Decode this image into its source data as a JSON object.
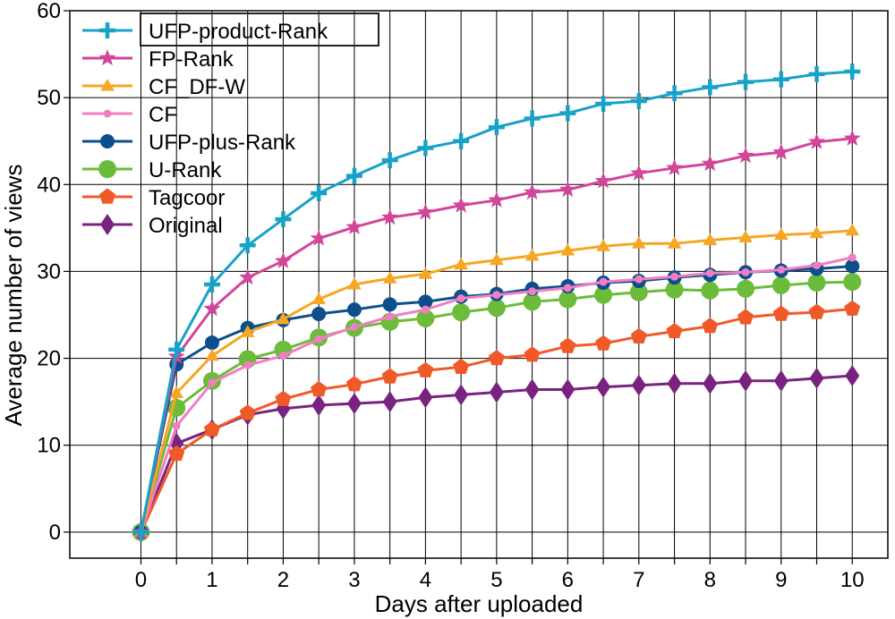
{
  "chart_data": {
    "type": "line",
    "xlabel": "Days after uploaded",
    "ylabel": "Average number of views",
    "xlim": [
      -1,
      10.5
    ],
    "ylim": [
      -3,
      60
    ],
    "xticks": [
      0,
      1,
      2,
      3,
      4,
      5,
      6,
      7,
      8,
      9,
      10
    ],
    "yticks": [
      0,
      10,
      20,
      30,
      40,
      50,
      60
    ],
    "grid": true,
    "legend_position": "top-left",
    "x": [
      0,
      0.5,
      1,
      1.5,
      2,
      2.5,
      3,
      3.5,
      4,
      4.5,
      5,
      5.5,
      6,
      6.5,
      7,
      7.5,
      8,
      8.5,
      9,
      9.5,
      10
    ],
    "series": [
      {
        "name": "UFP-product-Rank",
        "color": "#17a2c8",
        "marker": "plus",
        "values": [
          0,
          21,
          28.5,
          33,
          36,
          39,
          41,
          42.8,
          44.2,
          45,
          46.6,
          47.6,
          48.2,
          49.3,
          49.6,
          50.5,
          51.2,
          51.8,
          52.1,
          52.7,
          53
        ]
      },
      {
        "name": "FP-Rank",
        "color": "#d2459b",
        "marker": "star",
        "values": [
          0,
          20.2,
          25.7,
          29.3,
          31.2,
          33.8,
          35.1,
          36.2,
          36.8,
          37.6,
          38.2,
          39.1,
          39.4,
          40.4,
          41.3,
          41.9,
          42.4,
          43.3,
          43.7,
          44.9,
          45.3
        ]
      },
      {
        "name": "CF_DF-W",
        "color": "#f5a623",
        "marker": "triangle",
        "values": [
          0,
          16,
          20.3,
          23,
          24.5,
          26.8,
          28.5,
          29.2,
          29.7,
          30.8,
          31.3,
          31.8,
          32.4,
          32.9,
          33.2,
          33.2,
          33.6,
          33.9,
          34.2,
          34.4,
          34.7
        ]
      },
      {
        "name": "CF",
        "color": "#f17ec3",
        "marker": "circle-small",
        "values": [
          0,
          12.2,
          17.2,
          19.2,
          20.3,
          22.2,
          23.6,
          24.8,
          25.6,
          26.9,
          27.3,
          27.7,
          28.1,
          28.8,
          29.1,
          29.4,
          29.8,
          29.9,
          30.2,
          30.7,
          31.6
        ]
      },
      {
        "name": "UFP-plus-Rank",
        "color": "#0d4e8c",
        "marker": "circle",
        "values": [
          0,
          19.3,
          21.8,
          23.5,
          24.4,
          25.1,
          25.6,
          26.2,
          26.5,
          27.1,
          27.4,
          28,
          28.3,
          28.7,
          28.9,
          29.3,
          29.6,
          29.9,
          30.1,
          30.3,
          30.6
        ]
      },
      {
        "name": "U-Rank",
        "color": "#6cbc3b",
        "marker": "circle-large",
        "values": [
          0,
          14.3,
          17.4,
          19.9,
          21,
          22.4,
          23.5,
          24.2,
          24.6,
          25.3,
          25.8,
          26.5,
          26.8,
          27.3,
          27.6,
          27.9,
          27.8,
          28,
          28.4,
          28.7,
          28.8
        ]
      },
      {
        "name": "Tagcoor",
        "color": "#f05a28",
        "marker": "pentagon",
        "values": [
          0,
          9,
          11.8,
          13.7,
          15.3,
          16.4,
          17,
          17.9,
          18.6,
          19,
          20,
          20.4,
          21.4,
          21.7,
          22.5,
          23.1,
          23.7,
          24.7,
          25.1,
          25.3,
          25.7
        ]
      },
      {
        "name": "Original",
        "color": "#7a2280",
        "marker": "diamond",
        "values": [
          0,
          10.2,
          11.8,
          13.5,
          14.2,
          14.6,
          14.8,
          15,
          15.5,
          15.8,
          16.1,
          16.4,
          16.4,
          16.7,
          16.9,
          17.1,
          17.1,
          17.4,
          17.4,
          17.7,
          18
        ]
      }
    ]
  }
}
